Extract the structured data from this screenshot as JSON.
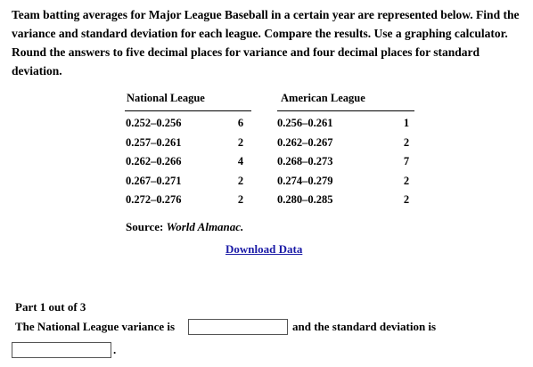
{
  "problem": {
    "prompt": "Team batting averages for Major League Baseball in a certain year are represented below. Find the variance and standard deviation for each league. Compare the results. Use a graphing calculator. Round the answers to five decimal places for variance and four decimal places for standard deviation."
  },
  "table": {
    "nl_header": "National League",
    "al_header": "American League",
    "rows": [
      {
        "nl_range": "0.252–0.256",
        "nl_freq": "6",
        "al_range": "0.256–0.261",
        "al_freq": "1"
      },
      {
        "nl_range": "0.257–0.261",
        "nl_freq": "2",
        "al_range": "0.262–0.267",
        "al_freq": "2"
      },
      {
        "nl_range": "0.262–0.266",
        "nl_freq": "4",
        "al_range": "0.268–0.273",
        "al_freq": "7"
      },
      {
        "nl_range": "0.267–0.271",
        "nl_freq": "2",
        "al_range": "0.274–0.279",
        "al_freq": "2"
      },
      {
        "nl_range": "0.272–0.276",
        "nl_freq": "2",
        "al_range": "0.280–0.285",
        "al_freq": "2"
      }
    ]
  },
  "source": {
    "label": "Source: ",
    "publication": "World Almanac."
  },
  "download_link": "Download Data",
  "part": {
    "label": "Part 1 out of 3",
    "question_before": "The National League variance is",
    "question_middle": "and the standard deviation is",
    "question_end": ".",
    "variance_value": "",
    "sd_value": ""
  }
}
